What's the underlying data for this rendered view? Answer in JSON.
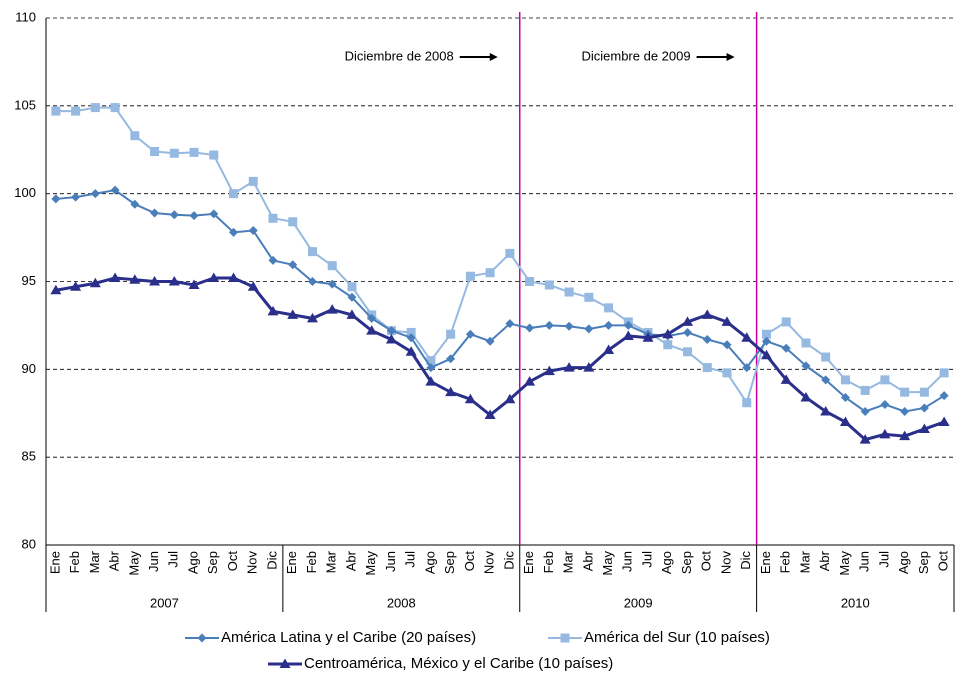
{
  "chart_data": {
    "type": "line",
    "categories": [
      "Ene",
      "Feb",
      "Mar",
      "Abr",
      "May",
      "Jun",
      "Jul",
      "Ago",
      "Sep",
      "Oct",
      "Nov",
      "Dic",
      "Ene",
      "Feb",
      "Mar",
      "Abr",
      "May",
      "Jun",
      "Jul",
      "Ago",
      "Sep",
      "Oct",
      "Nov",
      "Dic",
      "Ene",
      "Feb",
      "Mar",
      "Abr",
      "May",
      "Jun",
      "Jul",
      "Ago",
      "Sep",
      "Oct",
      "Nov",
      "Dic",
      "Ene",
      "Feb",
      "Mar",
      "Abr",
      "May",
      "Jun",
      "Jul",
      "Ago",
      "Sep",
      "Oct"
    ],
    "year_groups": [
      {
        "label": "2007",
        "count": 12
      },
      {
        "label": "2008",
        "count": 12
      },
      {
        "label": "2009",
        "count": 12
      },
      {
        "label": "2010",
        "count": 10
      }
    ],
    "series": [
      {
        "name": "América Latina y el Caribe (20 países)",
        "color": "#4a7ebb",
        "marker": "diamond",
        "values": [
          99.7,
          99.8,
          100.0,
          100.2,
          99.4,
          98.9,
          98.8,
          98.75,
          98.85,
          97.8,
          97.9,
          96.2,
          95.95,
          95.0,
          94.85,
          94.1,
          92.9,
          92.2,
          91.8,
          90.1,
          90.6,
          92.0,
          91.6,
          92.6,
          92.35,
          92.5,
          92.45,
          92.3,
          92.5,
          92.5,
          92.0,
          91.9,
          92.1,
          91.7,
          91.4,
          90.1,
          91.6,
          91.2,
          90.2,
          89.4,
          88.4,
          87.6,
          88.0,
          87.6,
          87.8,
          88.5
        ]
      },
      {
        "name": "América del Sur (10 países)",
        "color": "#95b9e0",
        "marker": "square",
        "values": [
          104.7,
          104.7,
          104.9,
          104.9,
          103.3,
          102.4,
          102.3,
          102.35,
          102.2,
          100.0,
          100.7,
          98.6,
          98.4,
          96.7,
          95.9,
          94.7,
          93.1,
          92.2,
          92.1,
          90.5,
          92.0,
          95.3,
          95.5,
          96.6,
          95.0,
          94.8,
          94.4,
          94.1,
          93.5,
          92.7,
          92.1,
          91.4,
          91.0,
          90.1,
          89.8,
          88.1,
          92.0,
          92.7,
          91.5,
          90.7,
          89.4,
          88.8,
          89.4,
          88.7,
          88.7,
          89.8
        ]
      },
      {
        "name": "Centroamérica, México y el Caribe (10 países)",
        "color": "#2b2f8c",
        "marker": "triangle",
        "values": [
          94.5,
          94.7,
          94.9,
          95.2,
          95.1,
          95.0,
          95.0,
          94.8,
          95.2,
          95.2,
          94.7,
          93.3,
          93.1,
          92.9,
          93.4,
          93.1,
          92.2,
          91.7,
          91.0,
          89.3,
          88.7,
          88.3,
          87.4,
          88.3,
          89.3,
          89.9,
          90.1,
          90.1,
          91.1,
          91.9,
          91.8,
          92.0,
          92.7,
          93.1,
          92.7,
          91.8,
          90.8,
          89.4,
          88.4,
          87.6,
          87.0,
          86.0,
          86.3,
          86.2,
          86.6,
          87.0
        ]
      }
    ],
    "annotations": [
      {
        "text": "Diciembre de 2008",
        "at": 23
      },
      {
        "text": "Diciembre de 2009",
        "at": 35
      }
    ],
    "ylim": [
      80,
      110
    ],
    "yticks": [
      80,
      85,
      90,
      95,
      100,
      105,
      110
    ],
    "grid": true
  }
}
